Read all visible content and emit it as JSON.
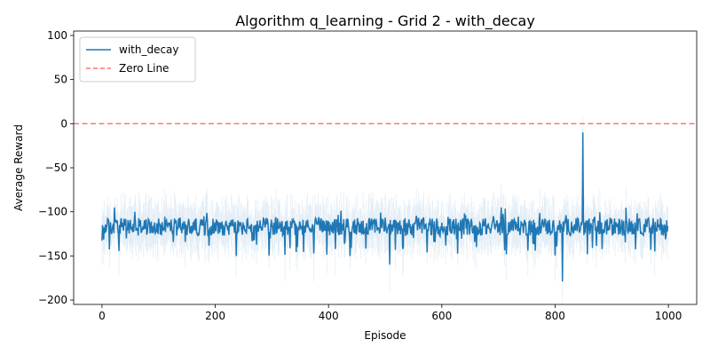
{
  "chart_data": {
    "type": "line",
    "title": "Algorithm q_learning - Grid 2 - with_decay",
    "xlabel": "Episode",
    "ylabel": "Average Reward",
    "xlim": [
      -50,
      1050
    ],
    "ylim": [
      -205,
      105
    ],
    "xticks": [
      0,
      200,
      400,
      600,
      800,
      1000
    ],
    "xtick_labels": [
      "0",
      "200",
      "400",
      "600",
      "800",
      "1000"
    ],
    "yticks": [
      -200,
      -150,
      -100,
      -50,
      0,
      50,
      100
    ],
    "ytick_labels": [
      "−200",
      "−150",
      "−100",
      "−50",
      "0",
      "50",
      "100"
    ],
    "grid": false,
    "legend_position": "top-left",
    "series": [
      {
        "name": "with_decay",
        "color": "#1f77b4",
        "n_points": 1000,
        "baseline_mean": -117,
        "typical_range": [
          -150,
          -95
        ],
        "notable_points": [
          {
            "x": 22,
            "y": -95
          },
          {
            "x": 45,
            "y": -120
          },
          {
            "x": 58,
            "y": -100
          },
          {
            "x": 237,
            "y": -150
          },
          {
            "x": 508,
            "y": -160
          },
          {
            "x": 705,
            "y": -95
          },
          {
            "x": 813,
            "y": -179
          },
          {
            "x": 849,
            "y": -10
          },
          {
            "x": 850,
            "y": -108
          },
          {
            "x": 976,
            "y": -145
          }
        ],
        "band": true
      },
      {
        "name": "Zero Line",
        "color": "#ff0000",
        "opacity": 0.55,
        "dashed": true,
        "y": 0
      }
    ]
  }
}
